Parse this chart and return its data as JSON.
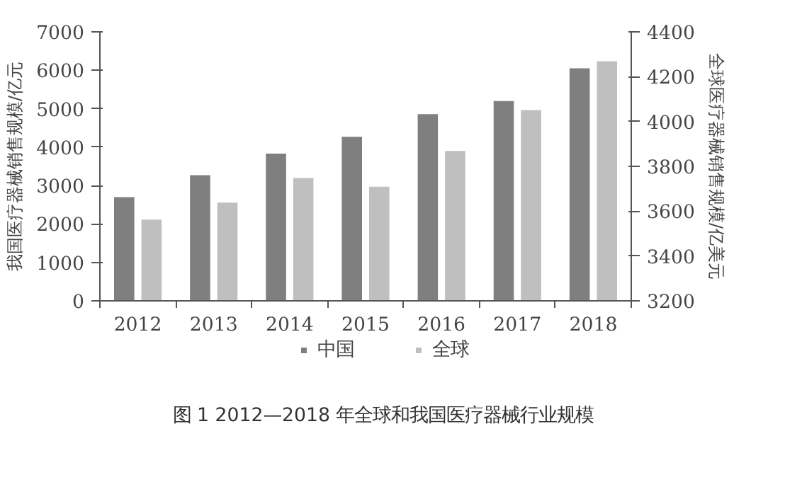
{
  "chart_data": {
    "type": "bar",
    "title": "图 1 2012—2018 年全球和我国医疗器械行业规模",
    "categories": [
      "2012",
      "2013",
      "2014",
      "2015",
      "2016",
      "2017",
      "2018"
    ],
    "ylabel": "我国医疗器械销售规模/亿元",
    "y2label": "全球医疗器械销售规模/亿美元",
    "ylim": [
      0,
      7000
    ],
    "yticks": [
      0,
      1000,
      2000,
      3000,
      4000,
      5000,
      6000,
      7000
    ],
    "y2lim": [
      3200,
      4400
    ],
    "y2ticks": [
      3200,
      3400,
      3600,
      3800,
      4000,
      4200,
      4400
    ],
    "series": [
      {
        "name": "中国",
        "color": "#7f7f7f",
        "values": [
          2700,
          3270,
          3830,
          4270,
          4860,
          5200,
          6050
        ]
      },
      {
        "name": "全球",
        "color": "#bfbfbf",
        "axis": "y2",
        "values": [
          3562,
          3638,
          3748,
          3709,
          3869,
          4051,
          4269
        ]
      }
    ],
    "legend": "bottom",
    "grid": false
  }
}
